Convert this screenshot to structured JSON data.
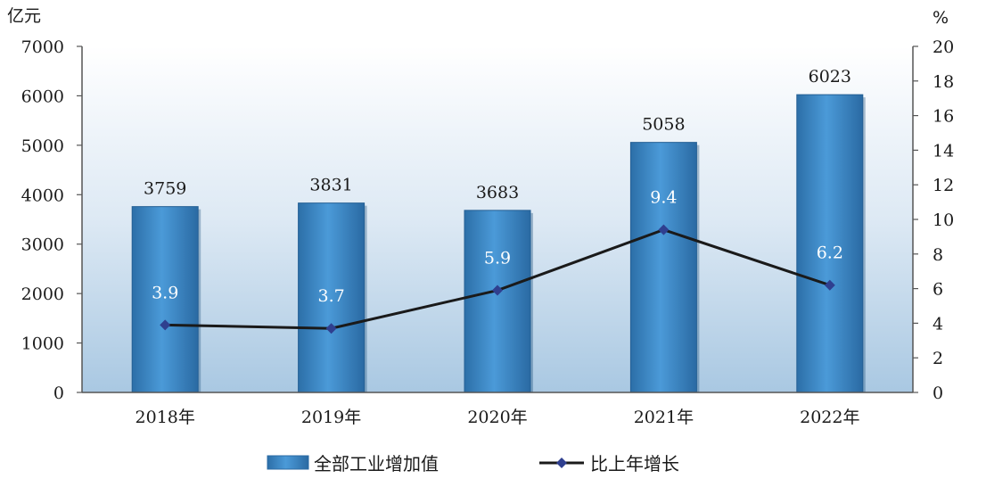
{
  "chart_data": {
    "type": "bar",
    "title": "",
    "categories": [
      "2018年",
      "2019年",
      "2020年",
      "2021年",
      "2022年"
    ],
    "y_left": {
      "unit": "亿元",
      "ylim": [
        0,
        7000
      ],
      "ticks": [
        "0",
        "1000",
        "2000",
        "3000",
        "4000",
        "5000",
        "6000",
        "7000"
      ]
    },
    "y_right": {
      "unit": "%",
      "ylim": [
        0,
        20
      ],
      "ticks": [
        "0",
        "2",
        "4",
        "6",
        "8",
        "10",
        "12",
        "14",
        "16",
        "18",
        "20"
      ]
    },
    "series": [
      {
        "name": "全部工业增加值",
        "kind": "bar",
        "axis": "left",
        "values": [
          3759,
          3831,
          3683,
          5058,
          6023
        ],
        "labels": [
          "3759",
          "3831",
          "3683",
          "5058",
          "6023"
        ],
        "color": "#3d8bc9"
      },
      {
        "name": "比上年增长",
        "kind": "line",
        "axis": "right",
        "values": [
          3.9,
          3.7,
          5.9,
          9.4,
          6.2
        ],
        "labels": [
          "3.9",
          "3.7",
          "5.9",
          "9.4",
          "6.2"
        ],
        "color": "#1a1a1a",
        "marker_color": "#2f3f8f"
      }
    ],
    "legend_position": "bottom",
    "grid": false
  }
}
